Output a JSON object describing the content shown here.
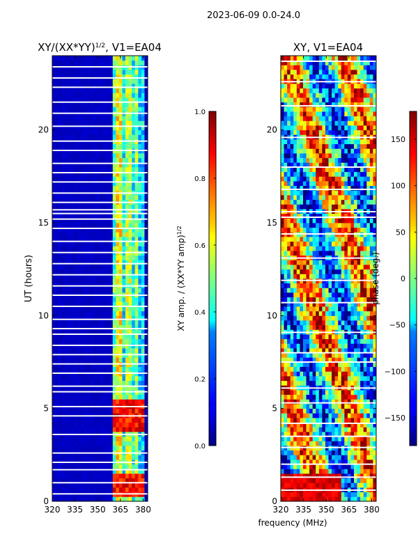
{
  "suptitle": "2023-06-09 0.0-24.0",
  "chart_data": [
    {
      "type": "heatmap",
      "title": "XY/(XX*YY)",
      "title_sup": "1/2",
      "title_suffix": ", V1=EA04",
      "xlabel": "",
      "ylabel": "UT (hours)",
      "xlim": [
        320,
        383
      ],
      "ylim": [
        0,
        24
      ],
      "xticks": [
        320,
        335,
        350,
        365,
        380
      ],
      "yticks": [
        0,
        5,
        10,
        15,
        20
      ],
      "colorbar": {
        "label": "XY amp. / (XX*YY amp)",
        "label_sup": "1/2",
        "range": [
          0.0,
          1.0
        ],
        "ticks": [
          0.0,
          0.2,
          0.4,
          0.6,
          0.8,
          1.0
        ],
        "tick_labels": [
          "0.0",
          "0.2",
          "0.4",
          "0.6",
          "0.8",
          "1.0"
        ]
      },
      "colormap": "jet",
      "background_value": 0.05,
      "active_band_mhz": [
        360,
        380
      ],
      "band_channels": [
        {
          "f": 361,
          "v": 0.45
        },
        {
          "f": 364,
          "v": 0.62
        },
        {
          "f": 367,
          "v": 0.38
        },
        {
          "f": 370,
          "v": 0.55
        },
        {
          "f": 373,
          "v": 0.4
        },
        {
          "f": 376,
          "v": 0.52
        },
        {
          "f": 379,
          "v": 0.35
        }
      ],
      "hot_periods_hours": [
        [
          0.3,
          1.5
        ],
        [
          3.8,
          5.5
        ]
      ],
      "flagged_rows_hours": [
        0.4,
        1.0,
        1.7,
        2.1,
        2.6,
        3.6,
        4.6,
        5.1,
        5.9,
        6.2,
        6.9,
        7.4,
        7.9,
        8.4,
        9.0,
        9.3,
        9.8,
        10.5,
        11.1,
        11.6,
        12.2,
        12.8,
        13.4,
        14.0,
        14.7,
        15.2,
        15.5,
        15.7,
        16.1,
        16.6,
        17.2,
        17.7,
        18.2,
        18.9,
        19.4,
        20.2,
        20.9,
        21.5,
        22.3,
        22.8,
        23.4
      ]
    },
    {
      "type": "heatmap",
      "title": "XY, V1=EA04",
      "xlabel": "frequency (MHz)",
      "ylabel": "",
      "xlim": [
        320,
        383
      ],
      "ylim": [
        0,
        24
      ],
      "xticks": [
        320,
        335,
        350,
        365,
        380
      ],
      "yticks": [
        0,
        5,
        10,
        15,
        20
      ],
      "colorbar": {
        "label": "phase (deg.)",
        "range": [
          -180,
          180
        ],
        "ticks": [
          -150,
          -100,
          -50,
          0,
          50,
          100,
          150
        ],
        "tick_labels": [
          "−150",
          "−100",
          "−50",
          "0",
          "50",
          "100",
          "150"
        ]
      },
      "colormap": "jet",
      "flagged_rows_hours": [
        0.6,
        1.3,
        2.0,
        2.9,
        3.5,
        4.2,
        5.3,
        6.1,
        7.5,
        8.0,
        9.1,
        10.7,
        11.9,
        13.1,
        14.4,
        15.3,
        15.6,
        16.8,
        18.0,
        19.6,
        21.3,
        22.6,
        23.7
      ]
    }
  ]
}
